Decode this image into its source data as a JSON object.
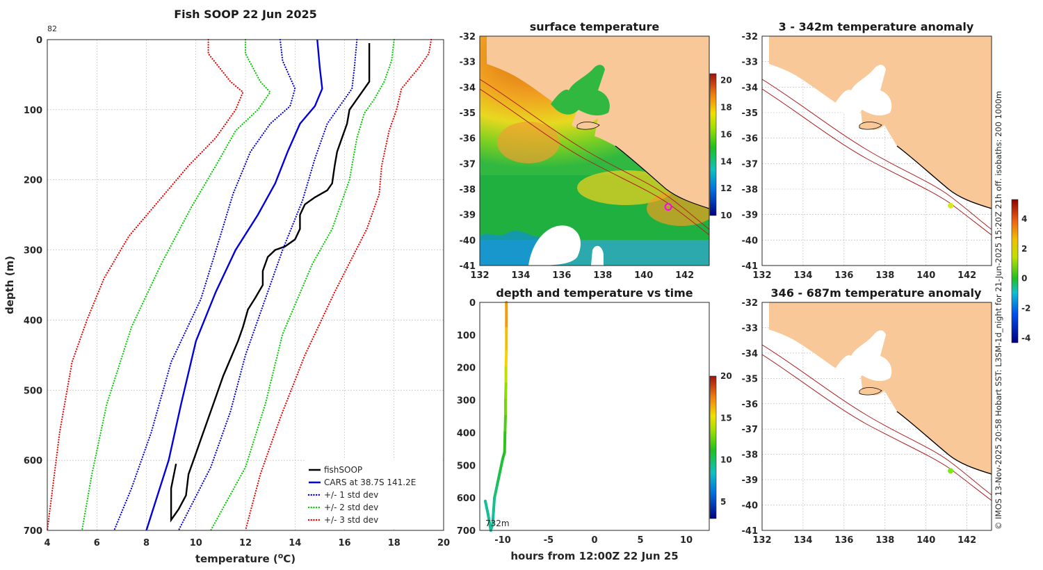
{
  "chart_data": [
    {
      "type": "line",
      "title": "Fish SOOP 22 Jun 2025",
      "corner_label": "82",
      "xlabel": "temperature (",
      "xlabel_sup": "o",
      "xlabel_end": "C)",
      "ylabel": "depth (m)",
      "xlim": [
        4,
        20
      ],
      "ylim": [
        0,
        700
      ],
      "x_ticks": [
        "4",
        "6",
        "8",
        "10",
        "12",
        "14",
        "16",
        "18",
        "20"
      ],
      "y_ticks": [
        "0",
        "100",
        "200",
        "300",
        "400",
        "500",
        "600",
        "700"
      ],
      "series": [
        {
          "name": "fishSOOP",
          "color": "#000000",
          "style": "solid",
          "points": [
            [
              17,
              5
            ],
            [
              17,
              60
            ],
            [
              16.8,
              70
            ],
            [
              16.5,
              85
            ],
            [
              16.2,
              100
            ],
            [
              16.1,
              120
            ],
            [
              15.9,
              140
            ],
            [
              15.7,
              160
            ],
            [
              15.6,
              180
            ],
            [
              15.5,
              205
            ],
            [
              15.3,
              215
            ],
            [
              14.8,
              225
            ],
            [
              14.4,
              235
            ],
            [
              14.2,
              250
            ],
            [
              14.2,
              270
            ],
            [
              14.0,
              285
            ],
            [
              13.6,
              295
            ],
            [
              13.2,
              300
            ],
            [
              12.9,
              310
            ],
            [
              12.7,
              330
            ],
            [
              12.7,
              350
            ],
            [
              12.4,
              368
            ],
            [
              12.1,
              385
            ],
            [
              11.9,
              410
            ],
            [
              11.7,
              430
            ],
            [
              11.4,
              455
            ],
            [
              11.1,
              480
            ],
            [
              10.8,
              510
            ],
            [
              10.5,
              540
            ],
            [
              10.2,
              570
            ],
            [
              10.0,
              590
            ],
            [
              9.7,
              620
            ],
            [
              9.6,
              650
            ],
            [
              9.3,
              670
            ],
            [
              9.0,
              685
            ],
            [
              9.0,
              640
            ],
            [
              9.2,
              605
            ]
          ]
        },
        {
          "name": "CARS at 38.7S 141.2E",
          "color": "#0000dd",
          "style": "solid",
          "points": [
            [
              14.9,
              0
            ],
            [
              15.0,
              40
            ],
            [
              15.1,
              70
            ],
            [
              14.8,
              95
            ],
            [
              14.2,
              120
            ],
            [
              13.7,
              160
            ],
            [
              13.2,
              205
            ],
            [
              12.5,
              250
            ],
            [
              11.6,
              300
            ],
            [
              10.8,
              360
            ],
            [
              10.0,
              430
            ],
            [
              9.4,
              520
            ],
            [
              8.9,
              600
            ],
            [
              8.0,
              700
            ]
          ]
        },
        {
          "name": "+/- 1 std dev",
          "color": "#0000dd",
          "style": "dotted",
          "points": [
            [
              16.5,
              0
            ],
            [
              16.4,
              40
            ],
            [
              16.3,
              70
            ],
            [
              15.9,
              90
            ],
            [
              15.3,
              120
            ],
            [
              14.8,
              170
            ],
            [
              14.3,
              230
            ],
            [
              13.5,
              300
            ],
            [
              12.8,
              370
            ],
            [
              12.0,
              450
            ],
            [
              11.4,
              530
            ],
            [
              10.6,
              610
            ],
            [
              9.3,
              700
            ]
          ]
        },
        {
          "name": "+/- 1 std dev lower",
          "color": "#0000dd",
          "style": "dotted",
          "nolegend": true,
          "points": [
            [
              13.4,
              0
            ],
            [
              13.5,
              30
            ],
            [
              14.0,
              70
            ],
            [
              13.8,
              95
            ],
            [
              13.0,
              120
            ],
            [
              12.2,
              160
            ],
            [
              11.5,
              220
            ],
            [
              10.9,
              290
            ],
            [
              10.2,
              370
            ],
            [
              9.0,
              460
            ],
            [
              8.2,
              560
            ],
            [
              7.4,
              640
            ],
            [
              6.7,
              700
            ]
          ]
        },
        {
          "name": "+/- 2 std dev",
          "color": "#00cc00",
          "style": "dotted",
          "points": [
            [
              18.0,
              0
            ],
            [
              17.9,
              30
            ],
            [
              17.6,
              60
            ],
            [
              17.2,
              85
            ],
            [
              16.8,
              105
            ],
            [
              16.5,
              140
            ],
            [
              16.2,
              200
            ],
            [
              15.5,
              270
            ],
            [
              14.7,
              320
            ],
            [
              13.5,
              420
            ],
            [
              12.8,
              520
            ],
            [
              12.0,
              610
            ],
            [
              10.6,
              700
            ]
          ]
        },
        {
          "name": "+/- 2 std dev lower",
          "color": "#00cc00",
          "style": "dotted",
          "nolegend": true,
          "points": [
            [
              12.0,
              0
            ],
            [
              12.0,
              20
            ],
            [
              12.6,
              60
            ],
            [
              13.0,
              75
            ],
            [
              12.5,
              100
            ],
            [
              11.6,
              130
            ],
            [
              10.8,
              180
            ],
            [
              9.8,
              240
            ],
            [
              8.6,
              320
            ],
            [
              7.4,
              410
            ],
            [
              6.4,
              520
            ],
            [
              5.8,
              620
            ],
            [
              5.4,
              700
            ]
          ]
        },
        {
          "name": "+/- 3 std dev",
          "color": "#ee0000",
          "style": "dotted",
          "points": [
            [
              19.5,
              0
            ],
            [
              19.4,
              20
            ],
            [
              19.0,
              40
            ],
            [
              18.3,
              70
            ],
            [
              18.1,
              100
            ],
            [
              17.8,
              130
            ],
            [
              17.5,
              180
            ],
            [
              17.4,
              220
            ],
            [
              16.9,
              270
            ],
            [
              15.6,
              360
            ],
            [
              14.4,
              450
            ],
            [
              13.4,
              540
            ],
            [
              12.6,
              620
            ],
            [
              12.0,
              700
            ]
          ]
        },
        {
          "name": "+/- 3 std dev lower",
          "color": "#ee0000",
          "style": "dotted",
          "nolegend": true,
          "points": [
            [
              10.5,
              0
            ],
            [
              10.5,
              20
            ],
            [
              11.4,
              60
            ],
            [
              11.9,
              75
            ],
            [
              11.6,
              100
            ],
            [
              10.8,
              140
            ],
            [
              9.7,
              180
            ],
            [
              8.5,
              230
            ],
            [
              7.3,
              280
            ],
            [
              6.3,
              340
            ],
            [
              5.6,
              400
            ],
            [
              5.0,
              460
            ],
            [
              4.5,
              560
            ],
            [
              4.0,
              700
            ]
          ]
        }
      ]
    },
    {
      "type": "heatmap",
      "title": "surface temperature",
      "xlim": [
        132,
        143.2
      ],
      "ylim": [
        -41,
        -32
      ],
      "x_ticks": [
        "132",
        "134",
        "136",
        "138",
        "140",
        "142"
      ],
      "y_ticks": [
        "-32",
        "-33",
        "-34",
        "-35",
        "-36",
        "-37",
        "-38",
        "-39",
        "-40",
        "-41"
      ],
      "colorbar": {
        "min": 10,
        "max": 20.5,
        "ticks": [
          "10",
          "12",
          "14",
          "16",
          "18",
          "20"
        ]
      },
      "marker": {
        "lon": 141.2,
        "lat": -38.7,
        "color": "#ff00ff"
      }
    },
    {
      "type": "scatter",
      "title": "depth and temperature vs time",
      "xlabel": "hours from 12:00Z 22 Jun 25",
      "xlim": [
        -12.5,
        12.5
      ],
      "ylim": [
        0,
        700
      ],
      "x_ticks": [
        "-10",
        "-5",
        "0",
        "5",
        "10"
      ],
      "y_ticks": [
        "0",
        "100",
        "200",
        "300",
        "400",
        "500",
        "600",
        "700"
      ],
      "max_depth_label": "732m",
      "colorbar": {
        "min": 3,
        "max": 20,
        "ticks": [
          "5",
          "10",
          "15",
          "20"
        ]
      },
      "points": [
        [
          -9.6,
          0,
          17
        ],
        [
          -9.6,
          80,
          16.8
        ],
        [
          -9.6,
          150,
          16
        ],
        [
          -9.65,
          200,
          15.5
        ],
        [
          -9.65,
          250,
          14.2
        ],
        [
          -9.7,
          300,
          13.2
        ],
        [
          -9.7,
          350,
          12.7
        ],
        [
          -9.75,
          400,
          12
        ],
        [
          -9.8,
          460,
          11.4
        ],
        [
          -10.0,
          480,
          11.1
        ],
        [
          -10.3,
          520,
          10.8
        ],
        [
          -10.6,
          560,
          10.3
        ],
        [
          -10.9,
          600,
          9.8
        ],
        [
          -11.0,
          640,
          9.4
        ],
        [
          -11.1,
          680,
          9.1
        ],
        [
          -11.3,
          700,
          9.0
        ],
        [
          -11.6,
          650,
          9.1
        ],
        [
          -11.9,
          610,
          9.2
        ]
      ]
    },
    {
      "type": "heatmap",
      "title": "3 - 342m temperature anomaly",
      "xlim": [
        132,
        143.2
      ],
      "ylim": [
        -41,
        -32
      ],
      "x_ticks": [
        "132",
        "134",
        "136",
        "138",
        "140",
        "142"
      ],
      "y_ticks": [
        "-32",
        "-33",
        "-34",
        "-35",
        "-36",
        "-37",
        "-38",
        "-39",
        "-40",
        "-41"
      ],
      "marker": {
        "lon": 141.2,
        "lat": -38.65,
        "color": "#d8e81a"
      }
    },
    {
      "type": "heatmap",
      "title": "346 - 687m temperature anomaly",
      "xlim": [
        132,
        143.2
      ],
      "ylim": [
        -41,
        -32
      ],
      "x_ticks": [
        "132",
        "134",
        "136",
        "138",
        "140",
        "142"
      ],
      "y_ticks": [
        "-32",
        "-33",
        "-34",
        "-35",
        "-36",
        "-37",
        "-38",
        "-39",
        "-40",
        "-41"
      ],
      "marker": {
        "lon": 141.2,
        "lat": -38.65,
        "color": "#7ee81a"
      }
    },
    {
      "type": "colorbar",
      "name": "anomaly colorbar",
      "min": -4.3,
      "max": 5.3,
      "ticks": [
        "-4",
        "-2",
        "0",
        "2",
        "4"
      ]
    }
  ],
  "credit": "© IMOS 13-Nov-2025 20:58 Hobart SST: L3SM-1d_night for 21-Jun-2025 15:20Z 21h off. isobaths: 200  1000m"
}
